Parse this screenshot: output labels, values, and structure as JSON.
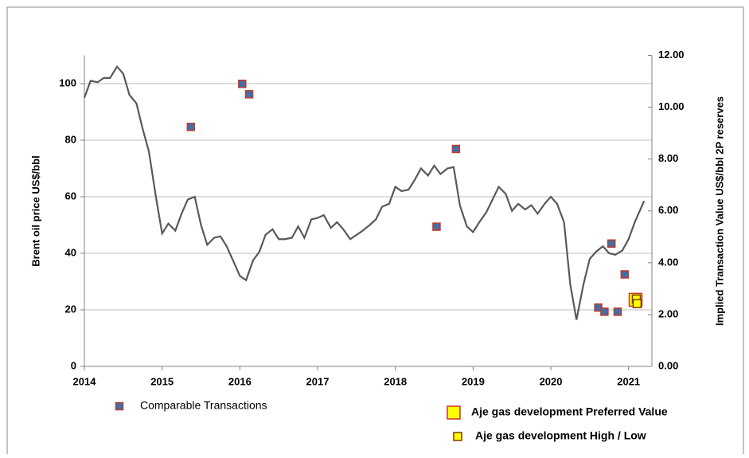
{
  "chart_data": {
    "type": "line",
    "ylabel": "Brent oil price US$/bbl",
    "y2label": "Implied Transaction Value US$/bbl 2P reserves",
    "xlim": [
      2014,
      2021.3
    ],
    "xticks": [
      2014,
      2015,
      2016,
      2017,
      2018,
      2019,
      2020,
      2021
    ],
    "ylim": [
      0,
      110
    ],
    "yticks": [
      0,
      20,
      40,
      60,
      80,
      100
    ],
    "y2lim": [
      0,
      12
    ],
    "y2ticks": [
      {
        "value": 0,
        "label": "0.00"
      },
      {
        "value": 2,
        "label": "2.00"
      },
      {
        "value": 4,
        "label": "4.00"
      },
      {
        "value": 6,
        "label": "6.00"
      },
      {
        "value": 8,
        "label": "8.00"
      },
      {
        "value": 10,
        "label": "10.00"
      },
      {
        "value": 12,
        "label": "12.00"
      }
    ],
    "grid": true,
    "series": [
      {
        "type": "line",
        "color": "#595959",
        "x": [
          2014.0,
          2014.08,
          2014.17,
          2014.25,
          2014.33,
          2014.42,
          2014.5,
          2014.58,
          2014.67,
          2014.75,
          2014.83,
          2014.92,
          2015.0,
          2015.08,
          2015.17,
          2015.25,
          2015.33,
          2015.42,
          2015.5,
          2015.58,
          2015.67,
          2015.75,
          2015.83,
          2015.92,
          2016.0,
          2016.08,
          2016.17,
          2016.25,
          2016.33,
          2016.42,
          2016.5,
          2016.58,
          2016.67,
          2016.75,
          2016.83,
          2016.92,
          2017.0,
          2017.08,
          2017.17,
          2017.25,
          2017.33,
          2017.42,
          2017.5,
          2017.58,
          2017.67,
          2017.75,
          2017.83,
          2017.92,
          2018.0,
          2018.08,
          2018.17,
          2018.25,
          2018.33,
          2018.42,
          2018.5,
          2018.58,
          2018.67,
          2018.75,
          2018.83,
          2018.92,
          2019.0,
          2019.08,
          2019.17,
          2019.25,
          2019.33,
          2019.42,
          2019.5,
          2019.58,
          2019.67,
          2019.75,
          2019.83,
          2019.92,
          2020.0,
          2020.08,
          2020.17,
          2020.25,
          2020.33,
          2020.42,
          2020.5,
          2020.58,
          2020.67,
          2020.75,
          2020.83,
          2020.92,
          2021.0,
          2021.08,
          2021.2
        ],
        "values": [
          95,
          101,
          100.5,
          102,
          102,
          106,
          103.5,
          96,
          93,
          84,
          76,
          60,
          47,
          50.5,
          48,
          54,
          59,
          60,
          50,
          43,
          45.5,
          46,
          42.5,
          37,
          32,
          30.5,
          37.5,
          40.5,
          46.5,
          48.5,
          45,
          45,
          45.5,
          49.5,
          45.5,
          52,
          52.5,
          53.5,
          49,
          51,
          48.5,
          45,
          46.5,
          48,
          50,
          52,
          56.5,
          57.5,
          63.5,
          62,
          62.5,
          66,
          70,
          67.5,
          71,
          68,
          70,
          70.5,
          57,
          49.5,
          47.5,
          51,
          54.5,
          59,
          63.5,
          61,
          55,
          57.5,
          55.5,
          57,
          54,
          57.5,
          60,
          57.5,
          51,
          29,
          16.5,
          29,
          38,
          40.5,
          42.5,
          40,
          39.5,
          41,
          45,
          51,
          58.5
        ]
      },
      {
        "type": "scatter",
        "name": "Comparable Transactions",
        "color": "#3f6fa8",
        "axis": "y2",
        "x": [
          2015.37,
          2016.03,
          2016.12,
          2018.53,
          2018.78,
          2020.61,
          2020.69,
          2020.78,
          2020.86,
          2020.95
        ],
        "values": [
          9.24,
          10.9,
          10.5,
          5.39,
          8.39,
          2.27,
          2.11,
          4.74,
          2.11,
          3.55
        ]
      },
      {
        "type": "scatter",
        "name": "Aje gas development Preferred Value",
        "color": "#ffff00",
        "axis": "y2",
        "x": [
          2021.09
        ],
        "values": [
          2.57
        ]
      },
      {
        "type": "scatter",
        "name": "Aje gas development High / Low",
        "color": "#ffff00",
        "axis": "y2",
        "x": [
          2021.1,
          2021.11
        ],
        "values": [
          2.6,
          2.42
        ]
      }
    ]
  }
}
